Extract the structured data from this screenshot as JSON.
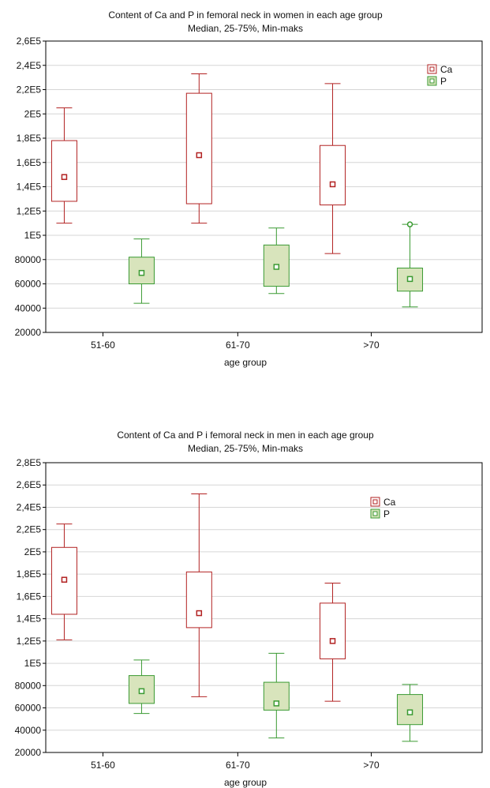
{
  "chart_data": [
    {
      "type": "boxplot",
      "title": "Content of Ca and P in femoral neck in women in each age group",
      "subtitle": "Median, 25-75%, Min-maks",
      "xlabel": "age group",
      "ylabel": "",
      "categories": [
        "51-60",
        "61-70",
        ">70"
      ],
      "ylim": [
        20000,
        260000
      ],
      "yticks": [
        20000,
        40000,
        60000,
        80000,
        100000,
        120000,
        140000,
        160000,
        180000,
        200000,
        220000,
        240000,
        260000
      ],
      "ytick_labels": [
        "20000",
        "40000",
        "60000",
        "80000",
        "1E5",
        "1,2E5",
        "1,4E5",
        "1,6E5",
        "1,8E5",
        "2E5",
        "2,2E5",
        "2,4E5",
        "2,6E5"
      ],
      "grid": true,
      "legend_position": "top-right",
      "series": [
        {
          "name": "Ca",
          "color": "#b22222",
          "fill": "#ffffff",
          "boxes": [
            {
              "min": 110000,
              "q1": 128000,
              "median": 148000,
              "q3": 178000,
              "max": 205000
            },
            {
              "min": 110000,
              "q1": 126000,
              "median": 166000,
              "q3": 217000,
              "max": 233000
            },
            {
              "min": 85000,
              "q1": 125000,
              "median": 142000,
              "q3": 174000,
              "max": 225000
            }
          ]
        },
        {
          "name": "P",
          "color": "#3a9a32",
          "fill": "#d8e4bc",
          "boxes": [
            {
              "min": 44000,
              "q1": 60000,
              "median": 69000,
              "q3": 82000,
              "max": 97000
            },
            {
              "min": 52000,
              "q1": 58000,
              "median": 74000,
              "q3": 92000,
              "max": 106000
            },
            {
              "min": 41000,
              "q1": 54000,
              "median": 64000,
              "q3": 73000,
              "max": 109000,
              "outliers": [
                109000
              ]
            }
          ]
        }
      ]
    },
    {
      "type": "boxplot",
      "title": "Content of Ca and P i femoral neck in men in each age group",
      "subtitle": "Median, 25-75%, Min-maks",
      "xlabel": "age group",
      "ylabel": "",
      "categories": [
        "51-60",
        "61-70",
        ">70"
      ],
      "ylim": [
        20000,
        280000
      ],
      "yticks": [
        20000,
        40000,
        60000,
        80000,
        100000,
        120000,
        140000,
        160000,
        180000,
        200000,
        220000,
        240000,
        260000,
        280000
      ],
      "ytick_labels": [
        "20000",
        "40000",
        "60000",
        "80000",
        "1E5",
        "1,2E5",
        "1,4E5",
        "1,6E5",
        "1,8E5",
        "2E5",
        "2,2E5",
        "2,4E5",
        "2,6E5",
        "2,8E5"
      ],
      "grid": true,
      "legend_position": "top-right",
      "series": [
        {
          "name": "Ca",
          "color": "#b22222",
          "fill": "#ffffff",
          "boxes": [
            {
              "min": 121000,
              "q1": 144000,
              "median": 175000,
              "q3": 204000,
              "max": 225000
            },
            {
              "min": 70000,
              "q1": 132000,
              "median": 145000,
              "q3": 182000,
              "max": 252000
            },
            {
              "min": 66000,
              "q1": 104000,
              "median": 120000,
              "q3": 154000,
              "max": 172000
            }
          ]
        },
        {
          "name": "P",
          "color": "#3a9a32",
          "fill": "#d8e4bc",
          "boxes": [
            {
              "min": 55000,
              "q1": 64000,
              "median": 75000,
              "q3": 89000,
              "max": 103000
            },
            {
              "min": 33000,
              "q1": 58000,
              "median": 64000,
              "q3": 83000,
              "max": 109000
            },
            {
              "min": 30000,
              "q1": 45000,
              "median": 56000,
              "q3": 72000,
              "max": 81000
            }
          ]
        }
      ]
    }
  ]
}
